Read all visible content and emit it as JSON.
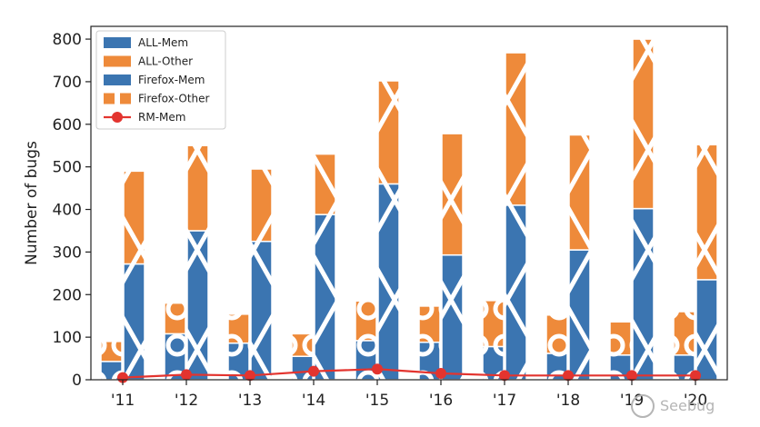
{
  "chart_data": {
    "type": "bar",
    "title": "",
    "xlabel": "",
    "ylabel": "Number of bugs",
    "ylim": [
      0,
      830
    ],
    "yticks": [
      0,
      100,
      200,
      300,
      400,
      500,
      600,
      700,
      800
    ],
    "categories": [
      "'11",
      "'12",
      "'13",
      "'14",
      "'15",
      "'16",
      "'17",
      "'18",
      "'19",
      "'20"
    ],
    "series": [
      {
        "name": "ALL-Mem",
        "group": "ALL",
        "stack": "base",
        "color": "#3b75b1",
        "values": [
          272,
          350,
          325,
          388,
          460,
          293,
          410,
          305,
          402,
          235
        ]
      },
      {
        "name": "ALL-Other",
        "group": "ALL",
        "stack": "top",
        "color": "#ee8a3a",
        "values": [
          218,
          200,
          170,
          142,
          242,
          285,
          358,
          270,
          398,
          317
        ]
      },
      {
        "name": "Firefox-Mem",
        "group": "Firefox",
        "stack": "base",
        "color": "#3b75b1",
        "values": [
          43,
          108,
          86,
          55,
          92,
          88,
          78,
          62,
          58,
          58
        ]
      },
      {
        "name": "Firefox-Other",
        "group": "Firefox",
        "stack": "top",
        "color": "#ee8a3a",
        "values": [
          47,
          72,
          68,
          53,
          93,
          85,
          108,
          90,
          78,
          102
        ]
      },
      {
        "name": "RM-Mem",
        "type": "line",
        "color": "#e3342f",
        "values": [
          5,
          12,
          10,
          20,
          25,
          15,
          10,
          10,
          10,
          10
        ]
      }
    ],
    "legend": {
      "position": "top-left",
      "entries": [
        "ALL-Mem",
        "ALL-Other",
        "Firefox-Mem",
        "Firefox-Other",
        "RM-Mem"
      ]
    },
    "grid": false
  },
  "watermark": "Seebug"
}
